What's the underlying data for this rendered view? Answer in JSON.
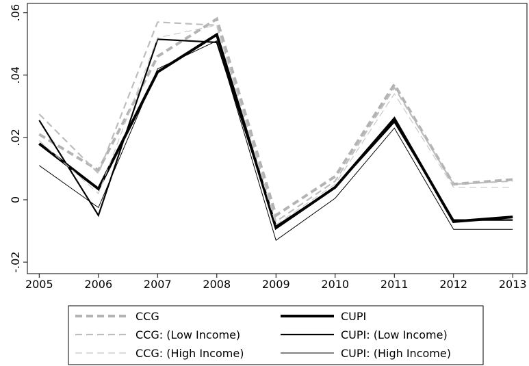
{
  "chart_data": {
    "type": "line",
    "x": [
      2005,
      2006,
      2007,
      2008,
      2009,
      2010,
      2011,
      2012,
      2013
    ],
    "xlim": [
      2004.8,
      2013.24
    ],
    "xticks": [
      2005,
      2006,
      2007,
      2008,
      2009,
      2010,
      2011,
      2012,
      2013
    ],
    "ylim": [
      -0.0237,
      0.063
    ],
    "yticks": [
      {
        "value": -0.02,
        "label": "-.02"
      },
      0,
      {
        "value": 0.02,
        "label": ".02"
      },
      {
        "value": 0.04,
        "label": ".04"
      },
      {
        "value": 0.06,
        "label": ".06"
      }
    ],
    "legend": "bottom",
    "series": [
      {
        "name": "CCG",
        "color": "#b3b3b3",
        "width": 4,
        "dash": "10 6",
        "values": [
          0.021,
          0.0095,
          0.046,
          0.058,
          -0.005,
          0.0075,
          0.037,
          0.005,
          0.0065
        ]
      },
      {
        "name": "CUPI",
        "color": "#000000",
        "width": 4,
        "dash": "none",
        "values": [
          0.018,
          0.0035,
          0.041,
          0.053,
          -0.009,
          0.004,
          0.026,
          -0.007,
          -0.0055
        ]
      },
      {
        "name": "CCG: (Low Income)",
        "color": "#bdbdbd",
        "width": 2.2,
        "dash": "10 6",
        "values": [
          0.0275,
          0.0085,
          0.057,
          0.056,
          -0.007,
          0.006,
          0.036,
          0.005,
          0.006
        ]
      },
      {
        "name": "CUPI: (Low Income)",
        "color": "#000000",
        "width": 2.2,
        "dash": "none",
        "values": [
          0.0255,
          -0.005,
          0.0515,
          0.0505,
          -0.0085,
          0.004,
          0.025,
          -0.0065,
          -0.0065
        ]
      },
      {
        "name": "CCG: (High Income)",
        "color": "#c8c8c8",
        "width": 1.2,
        "dash": "10 6",
        "values": [
          0.019,
          0.002,
          0.052,
          0.056,
          -0.008,
          0.005,
          0.034,
          0.004,
          0.004
        ]
      },
      {
        "name": "CUPI: (High Income)",
        "color": "#000000",
        "width": 1,
        "dash": "none",
        "values": [
          0.011,
          -0.0025,
          0.042,
          0.051,
          -0.013,
          0.0005,
          0.023,
          -0.0095,
          -0.0095
        ]
      }
    ]
  }
}
